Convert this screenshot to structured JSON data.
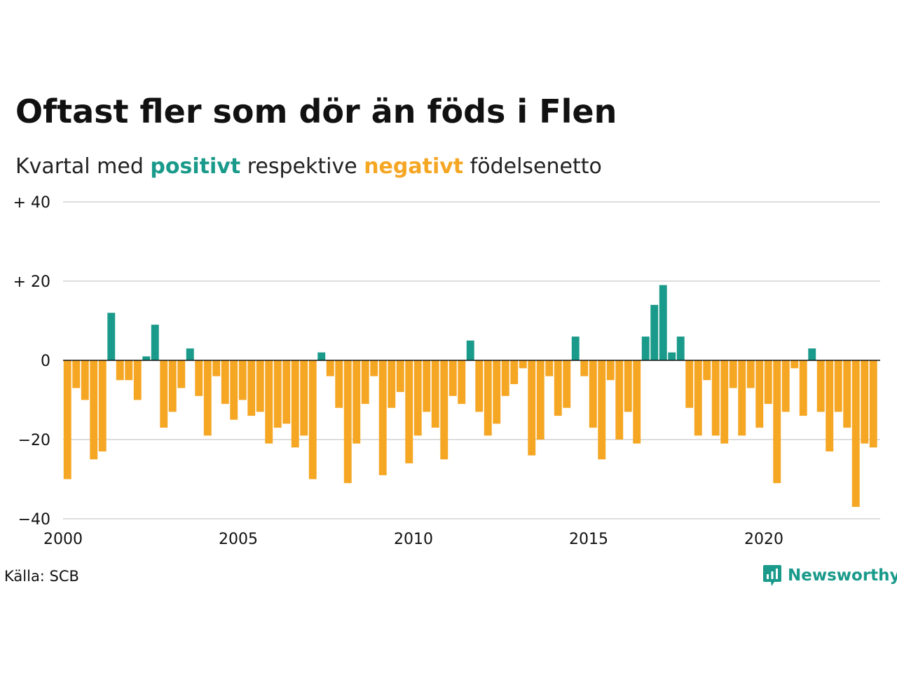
{
  "title": "Oftast fler som dör än föds i Flen",
  "subtitle": {
    "prefix": "Kvartal med ",
    "positive": "positivt",
    "middle": " respektive ",
    "negative": "negativt",
    "suffix": " födelsenetto"
  },
  "source": "Källa: SCB",
  "brand": {
    "name": "Newsworthy",
    "icon": "newsworthy-logo-icon"
  },
  "colors": {
    "positive": "#1a9a8a",
    "negative": "#f5a623",
    "grid": "#dddddd",
    "axis": "#111111",
    "brand": "#1a9a8a"
  },
  "chart_data": {
    "type": "bar",
    "title": "Oftast fler som dör än föds i Flen",
    "subtitle": "Kvartal med positivt respektive negativt födelsenetto",
    "xlabel": "",
    "ylabel": "",
    "ylim": [
      -40,
      40
    ],
    "y_ticks": [
      {
        "value": 40,
        "label": "+ 40"
      },
      {
        "value": 20,
        "label": "+ 20"
      },
      {
        "value": 0,
        "label": "0"
      },
      {
        "value": -20,
        "label": "−20"
      },
      {
        "value": -40,
        "label": "−40"
      }
    ],
    "x_ticks": [
      "2000",
      "2005",
      "2010",
      "2015",
      "2020"
    ],
    "grid": true,
    "start": "2000 Q1",
    "frequency": "quarter",
    "values": [
      -30,
      -7,
      -10,
      -25,
      -23,
      12,
      -5,
      -5,
      -10,
      1,
      9,
      -17,
      -13,
      -7,
      3,
      -9,
      -19,
      -4,
      -11,
      -15,
      -10,
      -14,
      -13,
      -21,
      -17,
      -16,
      -22,
      -19,
      -30,
      2,
      -4,
      -12,
      -31,
      -21,
      -11,
      -4,
      -29,
      -12,
      -8,
      -26,
      -19,
      -13,
      -17,
      -25,
      -9,
      -11,
      5,
      -13,
      -19,
      -16,
      -9,
      -6,
      -2,
      -24,
      -20,
      -4,
      -14,
      -12,
      6,
      -4,
      -17,
      -25,
      -5,
      -20,
      -13,
      -21,
      6,
      14,
      19,
      2,
      6,
      -12,
      -19,
      -5,
      -19,
      -21,
      -7,
      -19,
      -7,
      -17,
      -11,
      -31,
      -13,
      -2,
      -14,
      3,
      -13,
      -23,
      -13,
      -17,
      -37,
      -21,
      -22
    ]
  }
}
